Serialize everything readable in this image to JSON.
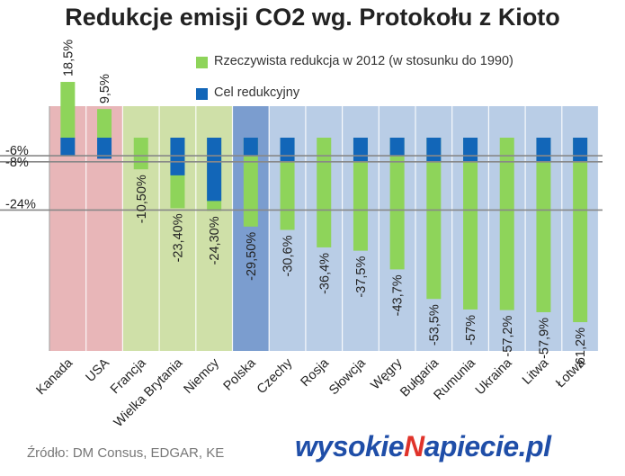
{
  "title": "Redukcje emisji CO2 wg. Protokołu z Kioto",
  "source": "Źródło: DM Consus, EDGAR, KE",
  "brand": "wysokieNapiecie.pl",
  "colors": {
    "actual": "#8ed45a",
    "target": "#1266b8",
    "group_red": "#e8b6b8",
    "group_green": "#cfe0a8",
    "group_blue_dark": "#7b9dcf",
    "group_blue": "#b9cde6",
    "hline": "#888888"
  },
  "chart_data": {
    "type": "bar",
    "title": "Redukcje emisji CO2 wg. Protokołu z Kioto",
    "categories": [
      "Kanada",
      "USA",
      "Francja",
      "Wielka Brytania",
      "Niemcy",
      "Polska",
      "Czechy",
      "Rosja",
      "Słowcja",
      "Węgry",
      "Bułgaria",
      "Rumunia",
      "Ukraina",
      "Litwa",
      "Łotwa"
    ],
    "series": [
      {
        "name": "Rzeczywista redukcja w 2012 (w stosunku do 1990)",
        "values": [
          18.5,
          9.5,
          -10.5,
          -23.4,
          -24.3,
          -29.5,
          -30.6,
          -36.4,
          -37.5,
          -43.7,
          -53.5,
          -57,
          -57.2,
          -57.9,
          -61.2
        ],
        "labels": [
          "18,5%",
          "9,5%",
          "-10,50%",
          "-23,40%",
          "-24,30%",
          "-29,50%",
          "-30,6%",
          "-36,4%",
          "-37,5%",
          "-43,7%",
          "-53,5%",
          "-57%",
          "-57,2%",
          "-57,9%",
          "-61,2%"
        ]
      },
      {
        "name": "Cel redukcyjny",
        "values": [
          -6,
          -7,
          0,
          -12.5,
          -21,
          -6,
          -8,
          0,
          -8,
          -6,
          -8,
          -8,
          0,
          -8,
          -8
        ]
      }
    ],
    "reference_lines": [
      {
        "value": -6,
        "label": "-6%"
      },
      {
        "value": -8,
        "label": "-8%"
      },
      {
        "value": -24,
        "label": "-24%"
      }
    ],
    "country_groups": [
      {
        "members": [
          "Kanada",
          "USA"
        ],
        "color": "#e8b6b8"
      },
      {
        "members": [
          "Francja",
          "Wielka Brytania",
          "Niemcy"
        ],
        "color": "#cfe0a8"
      },
      {
        "members": [
          "Polska"
        ],
        "color": "#7b9dcf"
      },
      {
        "members": [
          "Czechy",
          "Rosja",
          "Słowcja",
          "Węgry",
          "Bułgaria",
          "Rumunia",
          "Ukraina",
          "Litwa",
          "Łotwa"
        ],
        "color": "#b9cde6"
      }
    ]
  }
}
